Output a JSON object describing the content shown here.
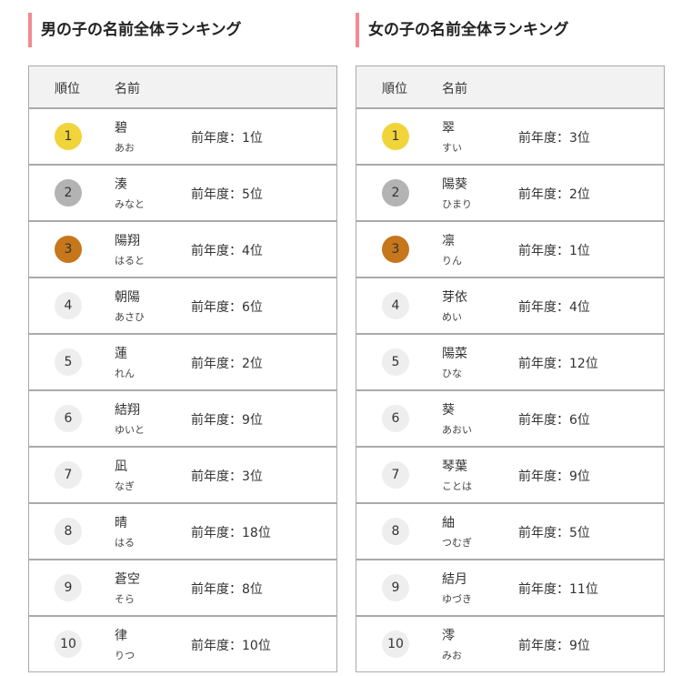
{
  "colors": {
    "gold": "#f0d43a",
    "silver": "#b3b3b3",
    "bronze": "#c6761b",
    "other": "#eeeeee",
    "accent_bar": "#f08a94"
  },
  "boys": {
    "title": "男の子の名前全体ランキング",
    "col_rank": "順位",
    "col_name": "名前",
    "rows": [
      {
        "rank": "1",
        "name": "碧",
        "reading": "あお",
        "prev": "前年度：1位"
      },
      {
        "rank": "2",
        "name": "湊",
        "reading": "みなと",
        "prev": "前年度：5位"
      },
      {
        "rank": "3",
        "name": "陽翔",
        "reading": "はると",
        "prev": "前年度：4位"
      },
      {
        "rank": "4",
        "name": "朝陽",
        "reading": "あさひ",
        "prev": "前年度：6位"
      },
      {
        "rank": "5",
        "name": "蓮",
        "reading": "れん",
        "prev": "前年度：2位"
      },
      {
        "rank": "6",
        "name": "結翔",
        "reading": "ゆいと",
        "prev": "前年度：9位"
      },
      {
        "rank": "7",
        "name": "凪",
        "reading": "なぎ",
        "prev": "前年度：3位"
      },
      {
        "rank": "8",
        "name": "晴",
        "reading": "はる",
        "prev": "前年度：18位"
      },
      {
        "rank": "9",
        "name": "蒼空",
        "reading": "そら",
        "prev": "前年度：8位"
      },
      {
        "rank": "10",
        "name": "律",
        "reading": "りつ",
        "prev": "前年度：10位"
      }
    ]
  },
  "girls": {
    "title": "女の子の名前全体ランキング",
    "col_rank": "順位",
    "col_name": "名前",
    "rows": [
      {
        "rank": "1",
        "name": "翠",
        "reading": "すい",
        "prev": "前年度：3位"
      },
      {
        "rank": "2",
        "name": "陽葵",
        "reading": "ひまり",
        "prev": "前年度：2位"
      },
      {
        "rank": "3",
        "name": "凛",
        "reading": "りん",
        "prev": "前年度：1位"
      },
      {
        "rank": "4",
        "name": "芽依",
        "reading": "めい",
        "prev": "前年度：4位"
      },
      {
        "rank": "5",
        "name": "陽菜",
        "reading": "ひな",
        "prev": "前年度：12位"
      },
      {
        "rank": "6",
        "name": "葵",
        "reading": "あおい",
        "prev": "前年度：6位"
      },
      {
        "rank": "7",
        "name": "琴葉",
        "reading": "ことは",
        "prev": "前年度：9位"
      },
      {
        "rank": "8",
        "name": "紬",
        "reading": "つむぎ",
        "prev": "前年度：5位"
      },
      {
        "rank": "9",
        "name": "結月",
        "reading": "ゆづき",
        "prev": "前年度：11位"
      },
      {
        "rank": "10",
        "name": "澪",
        "reading": "みお",
        "prev": "前年度：9位"
      }
    ]
  }
}
